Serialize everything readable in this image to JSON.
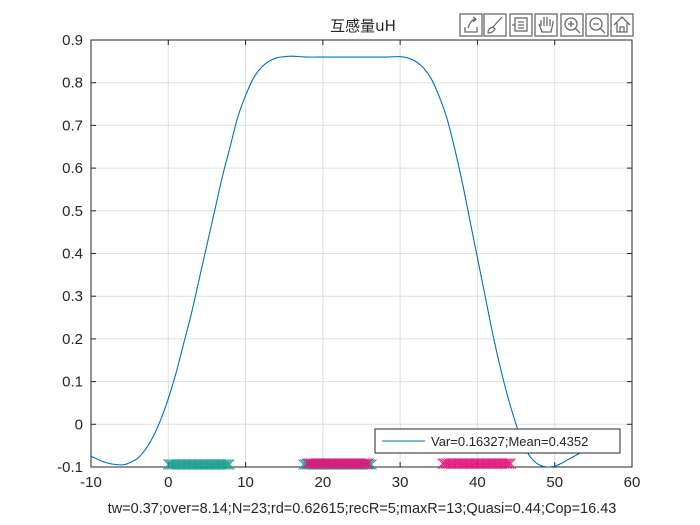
{
  "chart_data": {
    "type": "line",
    "title": "互感量uH",
    "xlabel": "tw=0.37;over=8.14;N=23;rd=0.62615;recR=5;maxR=13;Quasi=0.44;Cop=16.43",
    "ylabel": "",
    "xlim": [
      -10,
      60
    ],
    "ylim": [
      -0.1,
      0.9
    ],
    "xticks": [
      -10,
      0,
      10,
      20,
      30,
      40,
      50,
      60
    ],
    "yticks": [
      -0.1,
      0,
      0.1,
      0.2,
      0.3,
      0.4,
      0.5,
      0.6,
      0.7,
      0.8,
      0.9
    ],
    "xtick_labels": [
      "-10",
      "0",
      "10",
      "20",
      "30",
      "40",
      "50",
      "60"
    ],
    "ytick_labels": [
      "-0.1",
      "0",
      "0.1",
      "0.2",
      "0.3",
      "0.4",
      "0.5",
      "0.6",
      "0.7",
      "0.8",
      "0.9"
    ],
    "grid": true,
    "legend_position": "bottom-right",
    "series": [
      {
        "name": "Var=0.16327;Mean=0.4352",
        "color": "#0072bd",
        "x": [
          -10,
          -8,
          -6,
          -5,
          -4,
          -3,
          -2,
          -1,
          0,
          1,
          2,
          3,
          4,
          5,
          6,
          7,
          8,
          9,
          10,
          11,
          12,
          13,
          14,
          15,
          16,
          18,
          20,
          22,
          24,
          26,
          28,
          30,
          31,
          32,
          33,
          34,
          35,
          36,
          37,
          38,
          39,
          40,
          41,
          42,
          43,
          44,
          45,
          46,
          47,
          48,
          49,
          50,
          51,
          52,
          54
        ],
        "y": [
          -0.075,
          -0.09,
          -0.095,
          -0.09,
          -0.08,
          -0.06,
          -0.03,
          0.01,
          0.06,
          0.12,
          0.19,
          0.26,
          0.34,
          0.42,
          0.5,
          0.58,
          0.65,
          0.72,
          0.77,
          0.81,
          0.835,
          0.85,
          0.858,
          0.861,
          0.862,
          0.86,
          0.86,
          0.86,
          0.86,
          0.86,
          0.86,
          0.861,
          0.858,
          0.85,
          0.835,
          0.81,
          0.77,
          0.72,
          0.65,
          0.57,
          0.48,
          0.39,
          0.3,
          0.21,
          0.13,
          0.06,
          0.0,
          -0.05,
          -0.08,
          -0.095,
          -0.1,
          -0.098,
          -0.09,
          -0.08,
          -0.06
        ]
      }
    ],
    "markers": [
      {
        "name": "",
        "color": "#1a9e8f",
        "symbol": "x",
        "y": -0.094,
        "x_start": 0,
        "x_end": 8,
        "step": 0.22
      },
      {
        "name": "",
        "color": "#1a9e8f",
        "symbol": "x",
        "y": -0.094,
        "x_start": 17.5,
        "x_end": 26.5,
        "step": 0.22
      },
      {
        "name": "",
        "color": "#e0177d",
        "symbol": "x",
        "y": -0.092,
        "x_start": 18,
        "x_end": 26,
        "step": 0.22
      },
      {
        "name": "",
        "color": "#e0177d",
        "symbol": "x",
        "y": -0.092,
        "x_start": 35.5,
        "x_end": 44.5,
        "step": 0.22
      }
    ]
  },
  "toolbar": {
    "buttons": [
      {
        "name": "export-icon"
      },
      {
        "name": "brush-icon"
      },
      {
        "name": "data-tips-icon"
      },
      {
        "name": "pan-hand-icon"
      },
      {
        "name": "zoom-in-icon"
      },
      {
        "name": "zoom-out-icon"
      },
      {
        "name": "home-icon"
      }
    ]
  }
}
